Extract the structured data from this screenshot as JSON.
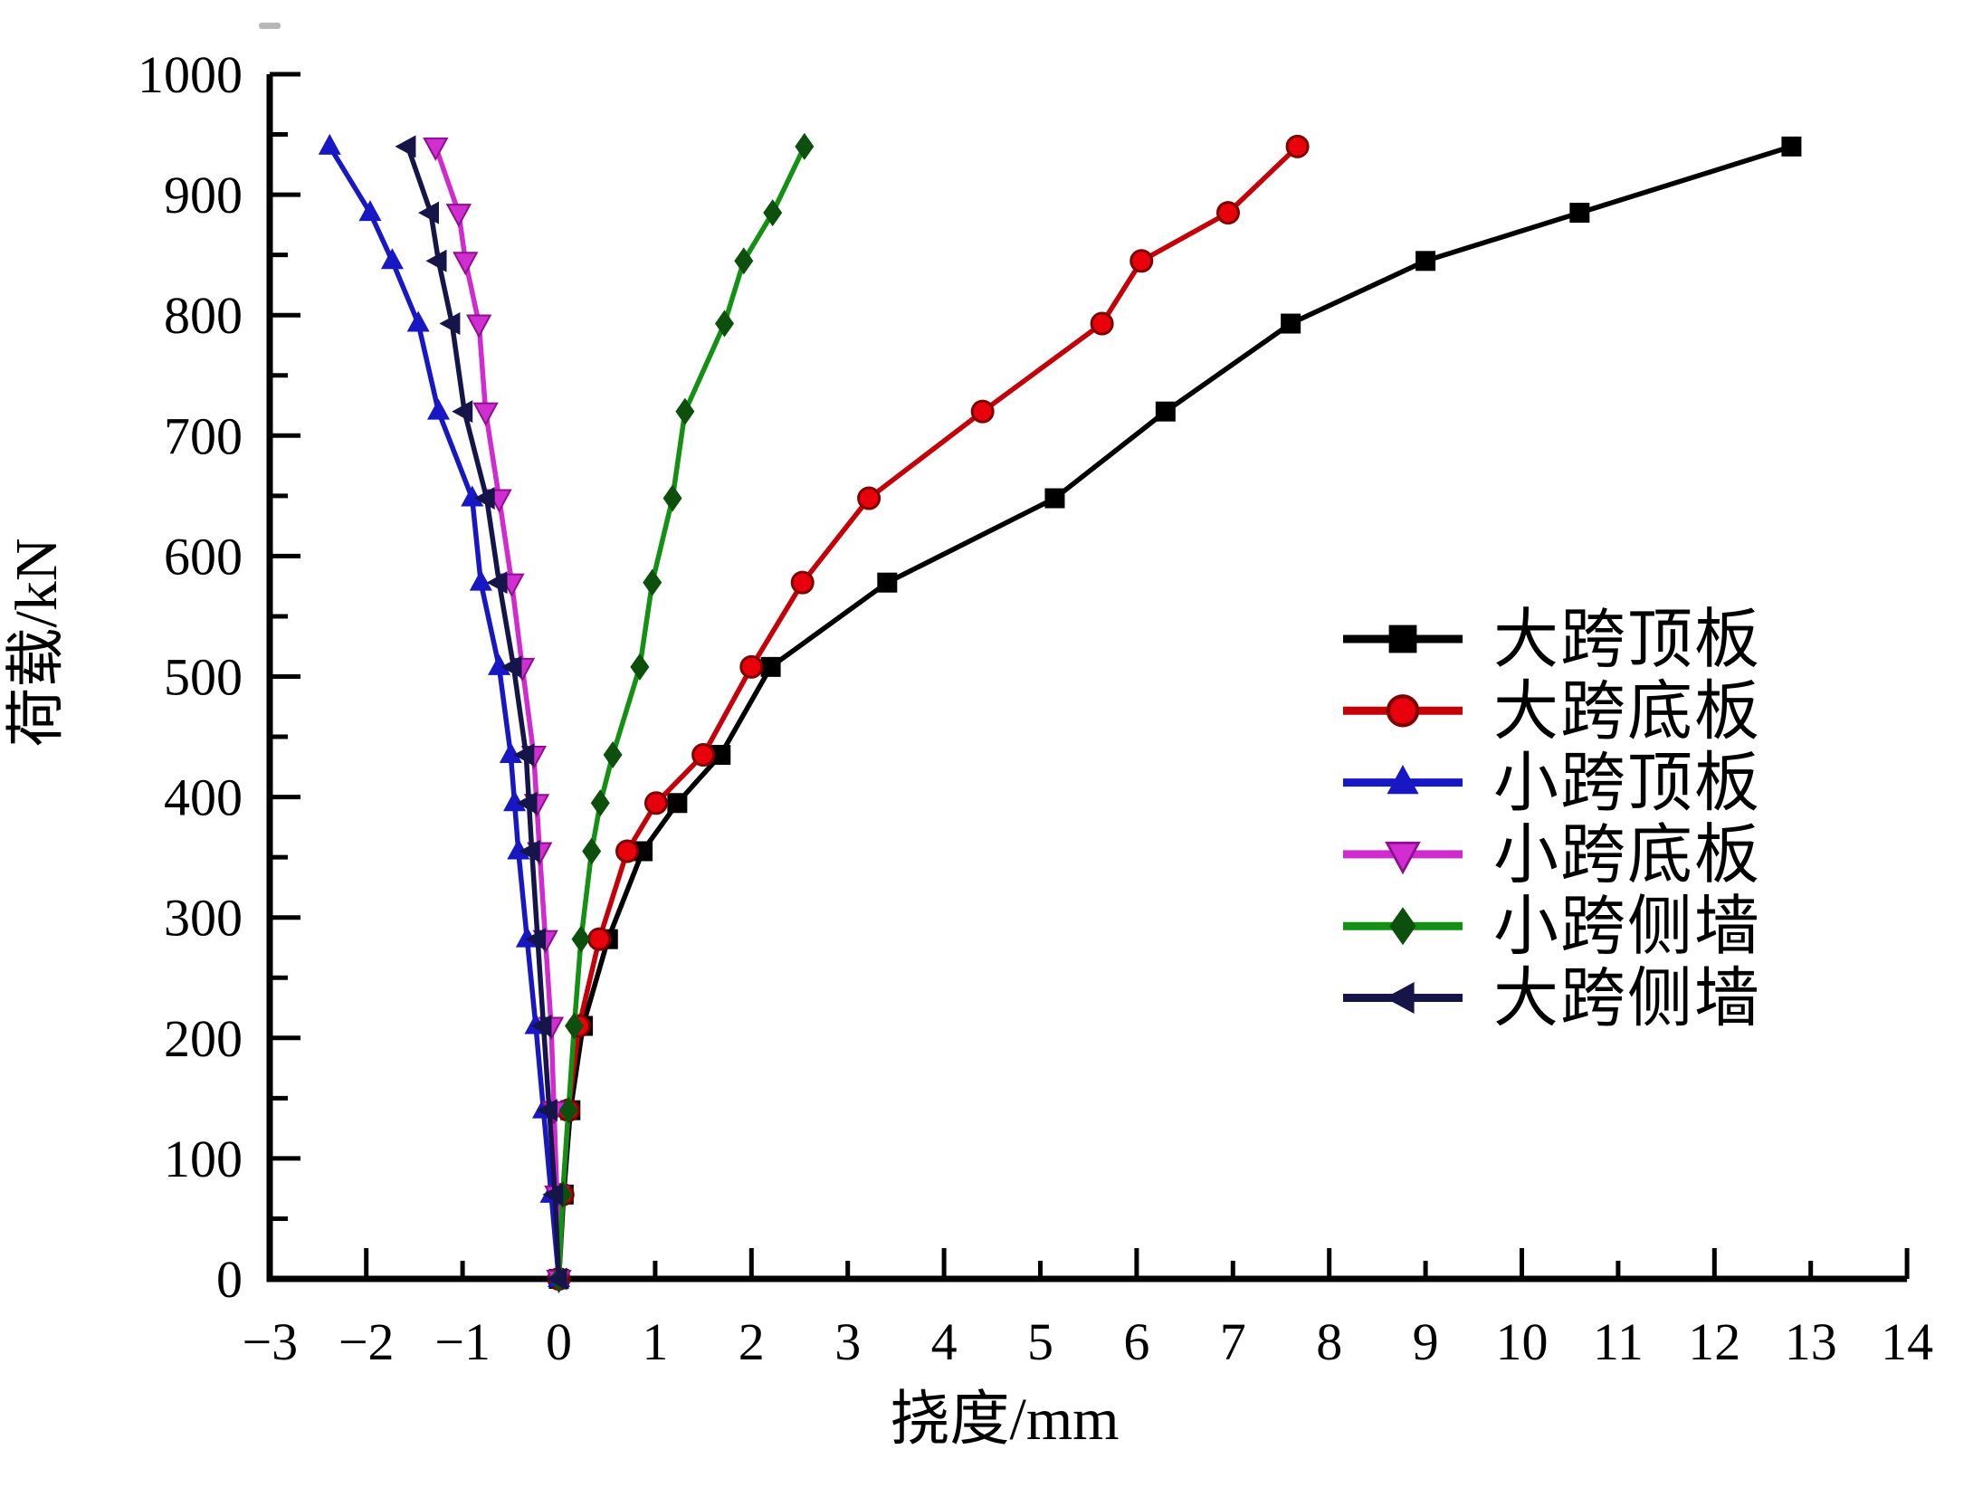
{
  "figure": {
    "background": "#ffffff",
    "axis_color": "#000000"
  },
  "chart_data": {
    "type": "line",
    "title": "",
    "xlabel": "挠度/mm",
    "ylabel": "荷载/kN",
    "xlim": [
      -3,
      14
    ],
    "ylim": [
      0,
      1000
    ],
    "x_ticks": [
      -3,
      -2,
      -1,
      0,
      1,
      2,
      3,
      4,
      5,
      6,
      7,
      8,
      9,
      10,
      11,
      12,
      13,
      14
    ],
    "y_ticks": [
      0,
      100,
      200,
      300,
      400,
      500,
      600,
      700,
      800,
      900,
      1000
    ],
    "y_minor_tick_step": 50,
    "grid": false,
    "legend_position": "right-middle",
    "loads_kN": [
      0,
      70,
      140,
      210,
      282,
      355,
      395,
      435,
      508,
      578,
      648,
      720,
      793,
      845,
      885,
      940
    ],
    "series": [
      {
        "name": "大跨顶板",
        "slug": "large-span-roof-slab",
        "color": "#000000",
        "marker": "square",
        "marker_fill": "#000000",
        "marker_edge": "#000000",
        "deflections_mm": [
          0,
          0.05,
          0.12,
          0.25,
          0.51,
          0.87,
          1.23,
          1.68,
          2.2,
          3.41,
          5.15,
          6.3,
          7.6,
          9.0,
          10.6,
          12.8
        ]
      },
      {
        "name": "大跨底板",
        "slug": "large-span-floor-slab",
        "color": "#c40008",
        "marker": "circle",
        "marker_fill": "#e8000b",
        "marker_edge": "#7f0000",
        "deflections_mm": [
          0,
          0.04,
          0.1,
          0.21,
          0.42,
          0.71,
          1.01,
          1.5,
          2.0,
          2.53,
          3.22,
          4.4,
          5.64,
          6.05,
          6.95,
          7.67
        ]
      },
      {
        "name": "小跨顶板",
        "slug": "small-span-roof-slab",
        "color": "#1717c4",
        "marker": "triangle-up",
        "marker_fill": "#1717c4",
        "marker_edge": "#10107a",
        "deflections_mm": [
          0,
          -0.08,
          -0.16,
          -0.24,
          -0.33,
          -0.42,
          -0.46,
          -0.5,
          -0.62,
          -0.81,
          -0.9,
          -1.25,
          -1.46,
          -1.73,
          -1.96,
          -2.38
        ]
      },
      {
        "name": "小跨底板",
        "slug": "small-span-floor-slab",
        "color": "#cf2bcf",
        "marker": "triangle-down",
        "marker_fill": "#d02ed0",
        "marker_edge": "#8f0e8f",
        "deflections_mm": [
          0,
          -0.02,
          -0.05,
          -0.08,
          -0.14,
          -0.2,
          -0.23,
          -0.26,
          -0.38,
          -0.49,
          -0.62,
          -0.76,
          -0.83,
          -0.97,
          -1.04,
          -1.28
        ]
      },
      {
        "name": "小跨侧墙",
        "slug": "small-span-side-wall",
        "color": "#149114",
        "marker": "diamond",
        "marker_fill": "#0d4f0d",
        "marker_edge": "#0d4f0d",
        "deflections_mm": [
          0,
          0.04,
          0.1,
          0.16,
          0.23,
          0.34,
          0.43,
          0.56,
          0.84,
          0.97,
          1.18,
          1.31,
          1.72,
          1.92,
          2.22,
          2.55
        ]
      },
      {
        "name": "大跨侧墙",
        "slug": "large-span-side-wall",
        "color": "#15154a",
        "marker": "triangle-left",
        "marker_fill": "#15154a",
        "marker_edge": "#0d0d30",
        "deflections_mm": [
          0,
          -0.04,
          -0.1,
          -0.16,
          -0.22,
          -0.28,
          -0.31,
          -0.34,
          -0.47,
          -0.62,
          -0.75,
          -0.98,
          -1.11,
          -1.25,
          -1.33,
          -1.57
        ]
      }
    ]
  }
}
